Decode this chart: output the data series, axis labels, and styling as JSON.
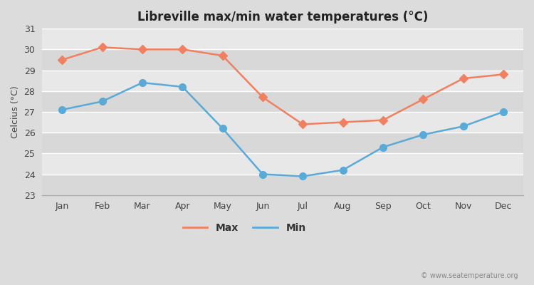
{
  "title": "Libreville max/min water temperatures (°C)",
  "ylabel": "Celcius (°C)",
  "months": [
    "Jan",
    "Feb",
    "Mar",
    "Apr",
    "May",
    "Jun",
    "Jul",
    "Aug",
    "Sep",
    "Oct",
    "Nov",
    "Dec"
  ],
  "max_temps": [
    29.5,
    30.1,
    30.0,
    30.0,
    29.7,
    27.7,
    26.4,
    26.5,
    26.6,
    27.6,
    28.6,
    28.8
  ],
  "min_temps": [
    27.1,
    27.5,
    28.4,
    28.2,
    26.2,
    24.0,
    23.9,
    24.2,
    25.3,
    25.9,
    26.3,
    27.0
  ],
  "max_color": "#f08060",
  "min_color": "#5aaad8",
  "bg_color": "#dcdcdc",
  "band_light": "#e8e8e8",
  "band_dark": "#d8d8d8",
  "grid_color": "#ffffff",
  "ylim": [
    23,
    31
  ],
  "yticks": [
    23,
    24,
    25,
    26,
    27,
    28,
    29,
    30,
    31
  ],
  "watermark": "© www.seatemperature.org",
  "legend_labels": [
    "Max",
    "Min"
  ],
  "title_fontsize": 12,
  "axis_fontsize": 9,
  "tick_fontsize": 9,
  "max_marker": "D",
  "min_marker": "o",
  "max_marker_size": 6,
  "min_marker_size": 7,
  "line_width": 1.8
}
